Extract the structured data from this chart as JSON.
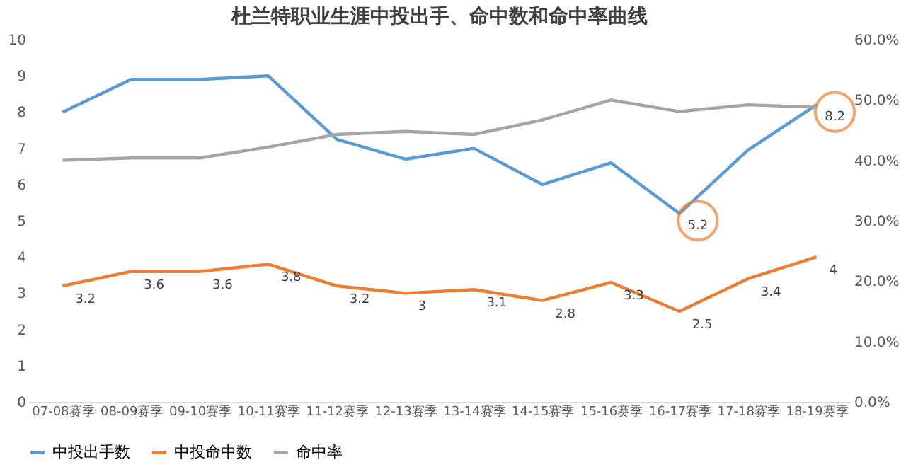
{
  "chart_data": {
    "type": "line",
    "title": "杜兰特职业生涯中投出手、命中数和命中率曲线",
    "categories": [
      "07-08赛季",
      "08-09赛季",
      "09-10赛季",
      "10-11赛季",
      "11-12赛季",
      "12-13赛季",
      "13-14赛季",
      "14-15赛季",
      "15-16赛季",
      "16-17赛季",
      "17-18赛季",
      "18-19赛季"
    ],
    "series": [
      {
        "name": "中投出手数",
        "color": "#5b9bd5",
        "values": [
          8.0,
          8.9,
          8.9,
          9.0,
          7.25,
          6.7,
          7.0,
          6.0,
          6.6,
          5.2,
          6.95,
          8.2
        ],
        "value_labels": [
          null,
          null,
          null,
          null,
          null,
          null,
          null,
          null,
          null,
          "5.2",
          null,
          "8.2"
        ]
      },
      {
        "name": "中投命中数",
        "color": "#ed7d31",
        "values": [
          3.2,
          3.6,
          3.6,
          3.8,
          3.2,
          3,
          3.1,
          2.8,
          3.3,
          2.5,
          3.4,
          4
        ],
        "value_labels": [
          "3.2",
          "3.6",
          "3.6",
          "3.8",
          "3.2",
          "3",
          "3.1",
          "2.8",
          "3.3",
          "2.5",
          "3.4",
          "4"
        ]
      },
      {
        "name": "命中率",
        "color": "#a5a5a5",
        "axis": "y2",
        "values": [
          40.0,
          40.4,
          40.4,
          42.2,
          44.3,
          44.8,
          44.3,
          46.7,
          50.0,
          48.1,
          49.2,
          48.8
        ]
      }
    ],
    "ylim": [
      0,
      10
    ],
    "yticks": [
      0,
      1,
      2,
      3,
      4,
      5,
      6,
      7,
      8,
      9,
      10
    ],
    "y2lim": [
      0,
      60
    ],
    "y2ticks": [
      {
        "value": 0,
        "label": "0.0%"
      },
      {
        "value": 10,
        "label": "10.0%"
      },
      {
        "value": 20,
        "label": "20.0%"
      },
      {
        "value": 30,
        "label": "30.0%"
      },
      {
        "value": 40,
        "label": "40.0%"
      },
      {
        "value": 50,
        "label": "50.0%"
      },
      {
        "value": 60,
        "label": "60.0%"
      }
    ],
    "grid": false,
    "legend": "bottom",
    "marker": "none",
    "line_style": "solid"
  }
}
